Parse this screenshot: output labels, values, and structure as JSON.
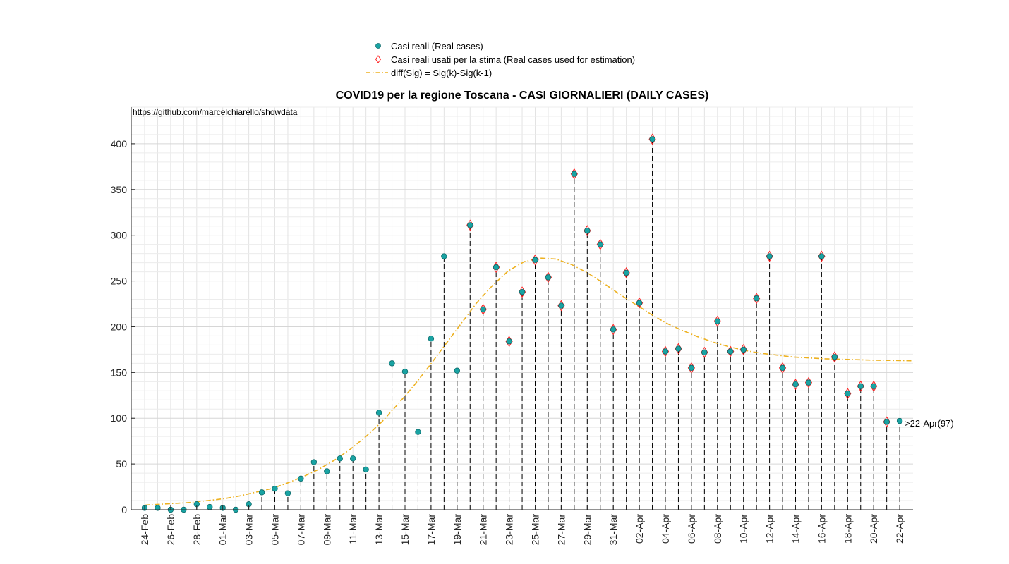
{
  "chart_data": {
    "type": "scatter",
    "title": "COVID19 per la regione Toscana - CASI GIORNALIERI (DAILY CASES)",
    "source_text": "https://github.com/marcelchiarello/showdata",
    "xlabel": "",
    "ylabel": "",
    "ylim": [
      0,
      440
    ],
    "yticks": [
      0,
      50,
      100,
      150,
      200,
      250,
      300,
      350,
      400
    ],
    "grid": true,
    "legend_position": "top",
    "dates": [
      "24-Feb",
      "25-Feb",
      "26-Feb",
      "27-Feb",
      "28-Feb",
      "29-Feb",
      "01-Mar",
      "02-Mar",
      "03-Mar",
      "04-Mar",
      "05-Mar",
      "06-Mar",
      "07-Mar",
      "08-Mar",
      "09-Mar",
      "10-Mar",
      "11-Mar",
      "12-Mar",
      "13-Mar",
      "14-Mar",
      "15-Mar",
      "16-Mar",
      "17-Mar",
      "18-Mar",
      "19-Mar",
      "20-Mar",
      "21-Mar",
      "22-Mar",
      "23-Mar",
      "24-Mar",
      "25-Mar",
      "26-Mar",
      "27-Mar",
      "28-Mar",
      "29-Mar",
      "30-Mar",
      "31-Mar",
      "01-Apr",
      "02-Apr",
      "03-Apr",
      "04-Apr",
      "05-Apr",
      "06-Apr",
      "07-Apr",
      "08-Apr",
      "09-Apr",
      "10-Apr",
      "11-Apr",
      "12-Apr",
      "13-Apr",
      "14-Apr",
      "15-Apr",
      "16-Apr",
      "17-Apr",
      "18-Apr",
      "19-Apr",
      "20-Apr",
      "21-Apr",
      "22-Apr"
    ],
    "x_tick_labels": [
      "24-Feb",
      "26-Feb",
      "28-Feb",
      "01-Mar",
      "03-Mar",
      "05-Mar",
      "07-Mar",
      "09-Mar",
      "11-Mar",
      "13-Mar",
      "15-Mar",
      "17-Mar",
      "19-Mar",
      "21-Mar",
      "23-Mar",
      "25-Mar",
      "27-Mar",
      "29-Mar",
      "31-Mar",
      "02-Apr",
      "04-Apr",
      "06-Apr",
      "08-Apr",
      "10-Apr",
      "12-Apr",
      "14-Apr",
      "16-Apr",
      "18-Apr",
      "20-Apr",
      "22-Apr"
    ],
    "series": [
      {
        "name": "Casi reali (Real cases)",
        "color": "#19a3a3",
        "marker": "circle",
        "values": [
          2,
          2,
          0,
          0,
          6,
          3,
          2,
          0,
          6,
          19,
          23,
          18,
          34,
          52,
          42,
          56,
          56,
          44,
          106,
          160,
          151,
          85,
          187,
          277,
          152,
          311,
          219,
          265,
          184,
          238,
          273,
          254,
          223,
          367,
          305,
          290,
          197,
          259,
          226,
          405,
          173,
          176,
          155,
          172,
          206,
          173,
          175,
          231,
          277,
          155,
          137,
          139,
          277,
          167,
          127,
          135,
          135,
          96,
          97
        ]
      },
      {
        "name": "Casi reali usati per la stima (Real cases used for estimation)",
        "color": "#ff2020",
        "marker": "diamond",
        "start_index": 25,
        "end_index": 57
      },
      {
        "name": "diff(Sig) = Sig(k)-Sig(k-1)",
        "color": "#edb120",
        "style": "dash-dot",
        "x_range": [
          0,
          59.5
        ],
        "values": [
          5,
          6,
          7,
          8,
          10,
          12,
          15,
          19,
          23,
          29,
          36,
          44,
          54,
          66,
          80,
          96,
          115,
          135,
          157,
          180,
          203,
          226,
          245,
          261,
          271,
          275,
          274,
          268,
          259,
          248,
          236,
          225,
          214,
          204,
          196,
          189,
          183,
          178,
          174,
          171,
          169,
          167,
          166,
          165,
          164.5,
          164,
          163.5,
          163.2,
          163,
          162.8
        ]
      }
    ],
    "annotation": ">22-Apr(97)"
  }
}
